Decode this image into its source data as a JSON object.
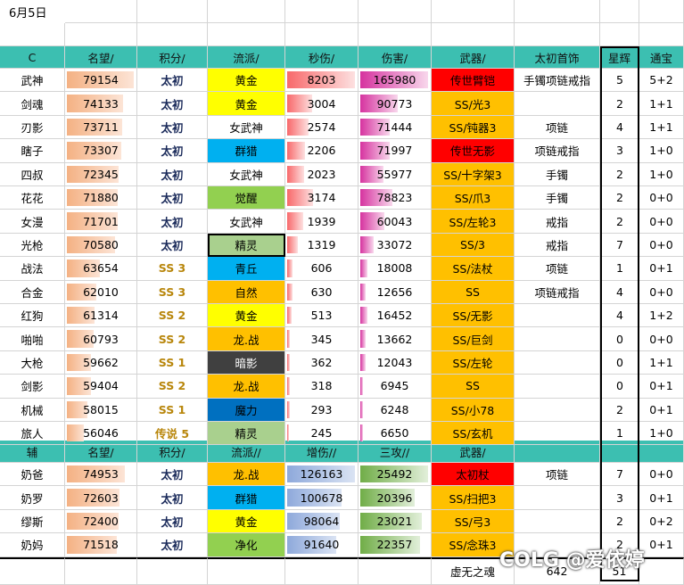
{
  "date": "6月5日",
  "dps_header": [
    "C",
    "名望/",
    "积分/",
    "流派/",
    "秒伤/",
    "伤害/",
    "武器/",
    "太初首饰",
    "星辉",
    "通宝"
  ],
  "dps_rows": [
    {
      "name": "武神",
      "fame": 79154,
      "score": "太初",
      "school": "黄金",
      "dps": 8203,
      "dmg": 165980,
      "weapon": "传世臂铠",
      "jewel": "手镯项链戒指",
      "star": "5",
      "coin": "5+2"
    },
    {
      "name": "剑魂",
      "fame": 74133,
      "score": "太初",
      "school": "黄金",
      "dps": 3004,
      "dmg": 90773,
      "weapon": "SS/光3",
      "jewel": "",
      "star": "2",
      "coin": "1+1"
    },
    {
      "name": "刃影",
      "fame": 73711,
      "score": "太初",
      "school": "女武神",
      "dps": 2574,
      "dmg": 71444,
      "weapon": "SS/钝器3",
      "jewel": "项链",
      "star": "4",
      "coin": "1+1"
    },
    {
      "name": "瞎子",
      "fame": 73307,
      "score": "太初",
      "school": "群猎",
      "dps": 2206,
      "dmg": 71997,
      "weapon": "传世无影",
      "jewel": "项链戒指",
      "star": "3",
      "coin": "1+0"
    },
    {
      "name": "四叔",
      "fame": 72345,
      "score": "太初",
      "school": "女武神",
      "dps": 2023,
      "dmg": 55977,
      "weapon": "SS/十字架3",
      "jewel": "手镯",
      "star": "2",
      "coin": "1+0"
    },
    {
      "name": "花花",
      "fame": 71880,
      "score": "太初",
      "school": "觉醒",
      "dps": 3174,
      "dmg": 78823,
      "weapon": "SS/爪3",
      "jewel": "手镯",
      "star": "2",
      "coin": "0+0"
    },
    {
      "name": "女漫",
      "fame": 71701,
      "score": "太初",
      "school": "女武神",
      "dps": 1939,
      "dmg": 60043,
      "weapon": "SS/左轮3",
      "jewel": "戒指",
      "star": "2",
      "coin": "0+0"
    },
    {
      "name": "光枪",
      "fame": 70580,
      "score": "太初",
      "school": "精灵",
      "dps": 1319,
      "dmg": 33072,
      "weapon": "SS/3",
      "jewel": "戒指",
      "star": "7",
      "coin": "0+0"
    },
    {
      "name": "战法",
      "fame": 63654,
      "score": "SS 3",
      "school": "青丘",
      "dps": 606,
      "dmg": 18008,
      "weapon": "SS/法杖",
      "jewel": "项链",
      "star": "1",
      "coin": "0+1"
    },
    {
      "name": "合金",
      "fame": 62010,
      "score": "SS 3",
      "school": "自然",
      "dps": 630,
      "dmg": 12656,
      "weapon": "SS",
      "jewel": "项链戒指",
      "star": "4",
      "coin": "0+0"
    },
    {
      "name": "红狗",
      "fame": 61314,
      "score": "SS 2",
      "school": "黄金",
      "dps": 513,
      "dmg": 16452,
      "weapon": "SS/无影",
      "jewel": "",
      "star": "4",
      "coin": "1+2"
    },
    {
      "name": "啪啪",
      "fame": 60793,
      "score": "SS 2",
      "school": "龙.战",
      "dps": 345,
      "dmg": 13662,
      "weapon": "SS/巨剑",
      "jewel": "",
      "star": "0",
      "coin": "0+0"
    },
    {
      "name": "大枪",
      "fame": 59662,
      "score": "SS 1",
      "school": "暗影",
      "dps": 362,
      "dmg": 12043,
      "weapon": "SS/左轮",
      "jewel": "",
      "star": "0",
      "coin": "1+1"
    },
    {
      "name": "剑影",
      "fame": 59404,
      "score": "SS 2",
      "school": "龙.战",
      "dps": 318,
      "dmg": 6945,
      "weapon": "SS",
      "jewel": "",
      "star": "0",
      "coin": "0+1"
    },
    {
      "name": "机械",
      "fame": 58015,
      "score": "SS 1",
      "school": "魔力",
      "dps": 293,
      "dmg": 6248,
      "weapon": "SS/小78",
      "jewel": "",
      "star": "2",
      "coin": "0+1"
    },
    {
      "name": "旅人",
      "fame": 56046,
      "score": "传说 5",
      "school": "精灵",
      "dps": 245,
      "dmg": 6650,
      "weapon": "SS/玄机",
      "jewel": "",
      "star": "1",
      "coin": "1+0"
    }
  ],
  "sup_header": [
    "辅",
    "名望/",
    "积分/",
    "流派//",
    "增伤//",
    "三攻//",
    "武器/",
    "",
    "",
    ""
  ],
  "sup_rows": [
    {
      "name": "奶爸",
      "fame": 74953,
      "score": "太初",
      "school": "龙.战",
      "buff": 126163,
      "atk": 25492,
      "weapon": "太初杖",
      "jewel": "项链",
      "star": "7",
      "coin": "0+0"
    },
    {
      "name": "奶罗",
      "fame": 72603,
      "score": "太初",
      "school": "群猎",
      "buff": 100678,
      "atk": 20396,
      "weapon": "SS/扫把3",
      "jewel": "",
      "star": "3",
      "coin": "0+1"
    },
    {
      "name": "缪斯",
      "fame": 72400,
      "score": "太初",
      "school": "黄金",
      "buff": 98064,
      "atk": 23021,
      "weapon": "SS/弓3",
      "jewel": "",
      "star": "2",
      "coin": "0+2"
    },
    {
      "name": "奶妈",
      "fame": 71518,
      "score": "太初",
      "school": "净化",
      "buff": 91640,
      "atk": 22357,
      "weapon": "SS/念珠3",
      "jewel": "",
      "star": "2",
      "coin": "0+1"
    }
  ],
  "footer": {
    "label": "虚无之魂",
    "value": "642",
    "total": "51"
  },
  "school_colors": {
    "黄金": "#ffff00",
    "女武神": "#ffffff",
    "群猎": "#00b0f0",
    "觉醒": "#92d050",
    "精灵": "#a9d08e",
    "青丘": "#00b0f0",
    "自然": "#ffc000",
    "龙.战": "#ffc000",
    "暗影": "#404040",
    "魔力": "#0070c0",
    "净化": "#92d050"
  },
  "weapon_colors": {
    "legend": "#ff0000",
    "ss": "#ffc000",
    "primal": "#ff0000"
  },
  "watermark": "COLG @爱依婷"
}
